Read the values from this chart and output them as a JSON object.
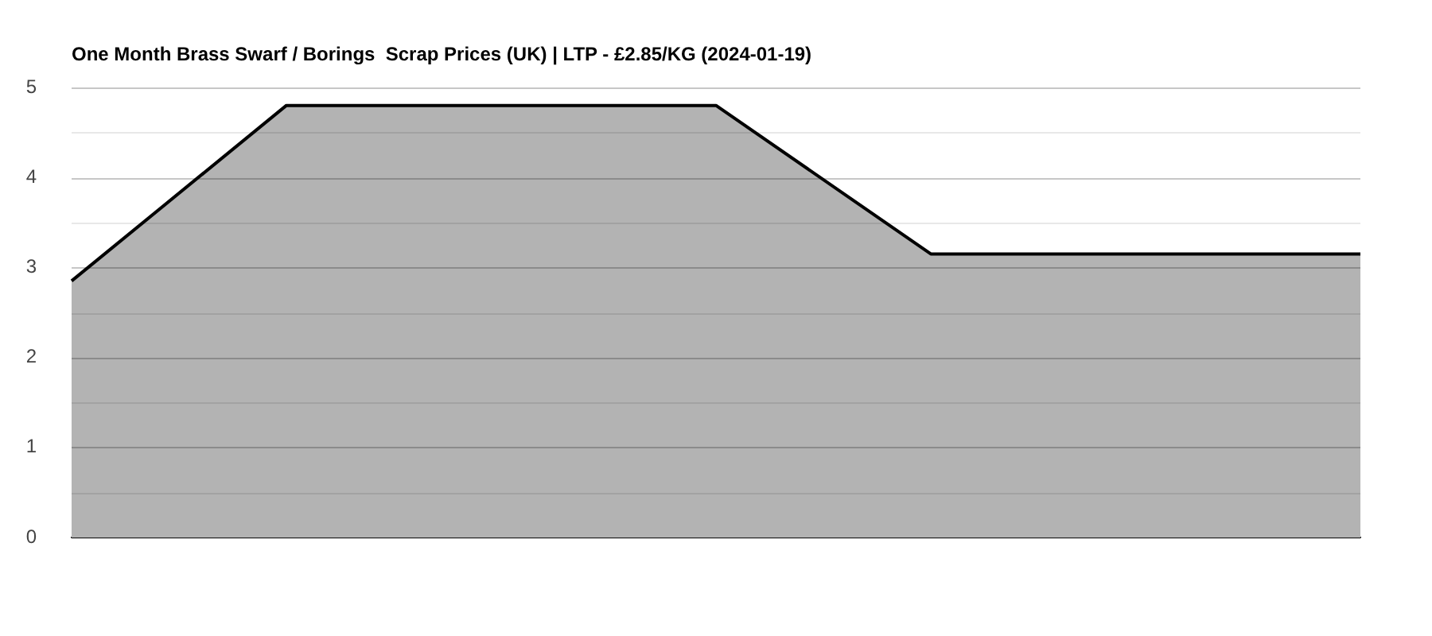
{
  "chart_data": {
    "type": "area",
    "title": "One Month Brass Swarf / Borings  Scrap Prices (UK) | LTP - £2.85/KG (2024-01-19)",
    "categories": [
      null,
      null,
      null,
      null,
      null,
      null,
      null
    ],
    "series": [
      {
        "color": "#b3b3b3",
        "values": [
          2.85,
          4.8,
          4.8,
          4.8,
          3.15,
          3.15,
          3.15
        ]
      }
    ],
    "ylim": [
      0,
      5
    ],
    "yticks": [
      0,
      {
        "value": 0.5,
        "label": null
      },
      1,
      {
        "value": 1.5,
        "label": null
      },
      2,
      {
        "value": 2.5,
        "label": null
      },
      3,
      {
        "value": 3.5,
        "label": null
      },
      4,
      {
        "value": 4.5,
        "label": null
      },
      5
    ],
    "grid": "y",
    "tick_labels": "y",
    "marker": "none"
  }
}
